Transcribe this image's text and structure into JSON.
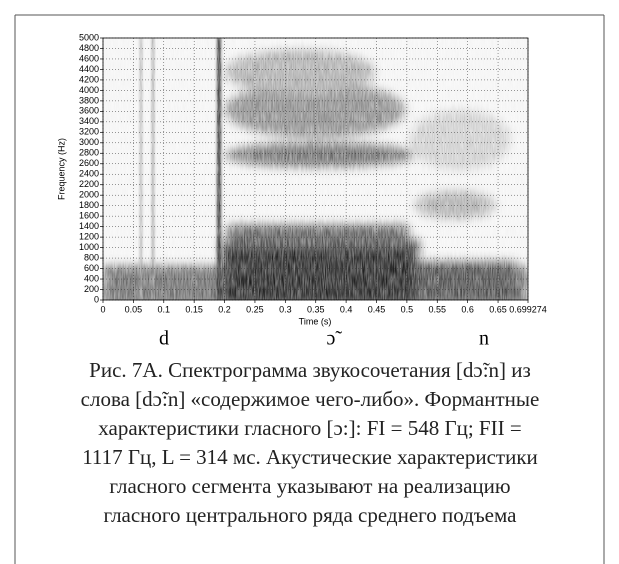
{
  "chart_data": {
    "type": "spectrogram",
    "xlabel": "Time (s)",
    "ylabel": "Frequency (Hz)",
    "xlim": [
      0,
      0.699274
    ],
    "xticks": [
      0,
      0.05,
      0.1,
      0.15,
      0.2,
      0.25,
      0.3,
      0.35,
      0.4,
      0.45,
      0.5,
      0.55,
      0.6,
      0.65,
      0.699274
    ],
    "ylim": [
      0,
      5000
    ],
    "yticks": [
      0,
      200,
      400,
      600,
      800,
      1000,
      1200,
      1400,
      1600,
      1800,
      2000,
      2200,
      2400,
      2600,
      2800,
      3000,
      3200,
      3400,
      3600,
      3800,
      4000,
      4200,
      4400,
      4600,
      4800,
      5000
    ],
    "grid": true
  },
  "segments": [
    "d",
    "ɔ̃",
    "n"
  ],
  "caption": [
    "Рис. 7А. Спектрограмма звукосочетания [dɔ̃:n] из",
    "слова [dɔ̃:n] «содержимое чего-либо». Формантные",
    "характеристики гласного [ɔ:]: FI = 548 Гц; FII =",
    "1117 Гц, L = 314 мс. Акустические характеристики",
    "гласного сегмента указывают на реализацию",
    "гласного центрального ряда среднего подъема"
  ]
}
